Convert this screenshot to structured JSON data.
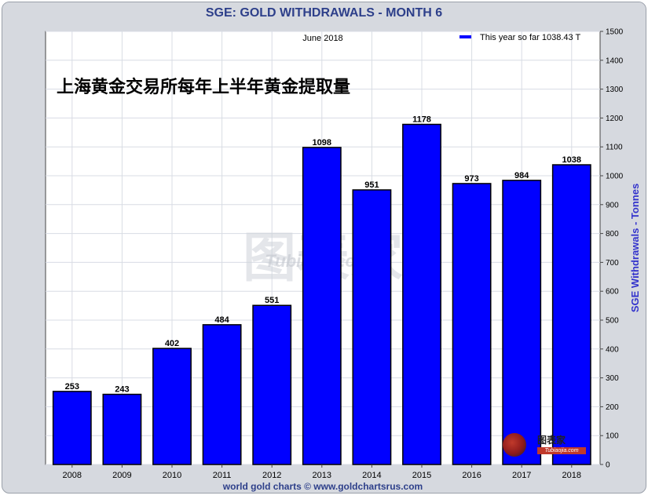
{
  "title": "SGE: GOLD WITHDRAWALS - MONTH 6",
  "subtitle": "June 2018",
  "legend_label": "This year so far 1038.43 T",
  "chinese_caption": "上海黄金交易所每年上半年黄金提取量",
  "footer": "world gold charts © www.goldchartsrus.com",
  "watermark": {
    "big": "图表家",
    "small": "Tubiaojia.com"
  },
  "corner_logo": {
    "text": "图表家",
    "small": "Tubiaojia.com"
  },
  "colors": {
    "bar": "#0000ff",
    "plot_bg": "#ffffff",
    "frame_bg": "#d6d9df",
    "axis_label": "#3333cc",
    "title": "#2d3f8a"
  },
  "chart_data": {
    "type": "bar",
    "categories": [
      "2008",
      "2009",
      "2010",
      "2011",
      "2012",
      "2013",
      "2014",
      "2015",
      "2016",
      "2017",
      "2018"
    ],
    "values": [
      253,
      243,
      402,
      484,
      551,
      1098,
      951,
      1178,
      973,
      984,
      1038
    ],
    "data_labels": [
      "253",
      "243",
      "402",
      "484",
      "551",
      "1098",
      "951",
      "1178",
      "973",
      "984",
      "1038"
    ],
    "ylabel": "SGE Withdrawals - Tonnes",
    "yticks": [
      0,
      100,
      200,
      300,
      400,
      500,
      600,
      700,
      800,
      900,
      1000,
      1100,
      1200,
      1300,
      1400,
      1500
    ],
    "ylim": [
      0,
      1500
    ],
    "y_axis_side": "right",
    "grid": true,
    "legend_position": "top-right"
  }
}
